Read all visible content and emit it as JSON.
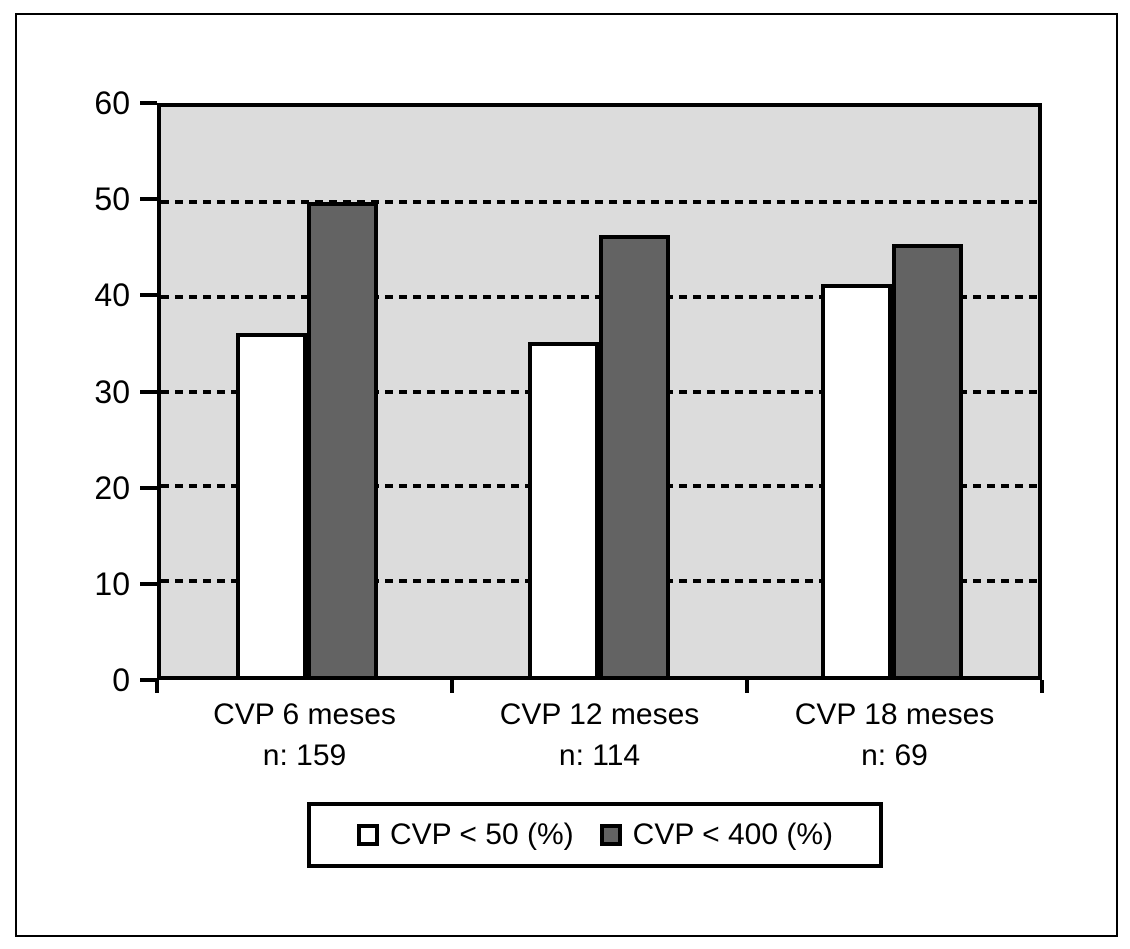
{
  "figure": {
    "background": "#FFFFFF",
    "frame_color": "#000000"
  },
  "chart_data": {
    "type": "bar",
    "title": "",
    "categories": [
      "CVP 6 meses",
      "CVP 12 meses",
      "CVP 18 meses"
    ],
    "category_counts": [
      "n: 159",
      "n: 114",
      "n: 69"
    ],
    "series": [
      {
        "name": "CVP < 50 (%)",
        "color": "#FFFFFF",
        "values": [
          36.2,
          35.2,
          41.3
        ]
      },
      {
        "name": "CVP < 400 (%)",
        "color": "#636363",
        "values": [
          50.0,
          46.5,
          45.6
        ]
      }
    ],
    "ylim": [
      0,
      60
    ],
    "yticks": [
      0,
      10,
      20,
      30,
      40,
      50,
      60
    ],
    "xlabel": "",
    "ylabel": "",
    "grid": {
      "horizontal": true,
      "style": "dashed",
      "color": "#000000"
    },
    "plot_background": "#DCDCDC",
    "axis_color": "#000000",
    "legend_position": "bottom-boxed"
  }
}
